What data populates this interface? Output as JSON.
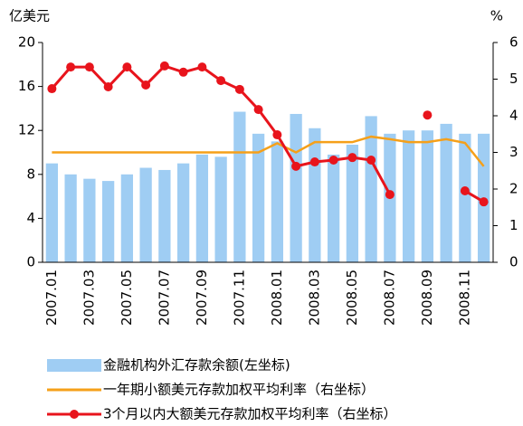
{
  "chart_data": {
    "type": "bar",
    "y_label": "亿美元",
    "y2_label": "%",
    "categories": [
      "2007.01",
      null,
      "2007.03",
      null,
      "2007.05",
      null,
      "2007.07",
      null,
      "2007.09",
      null,
      "2007.11",
      null,
      "2008.01",
      null,
      "2008.03",
      null,
      "2008.05",
      null,
      "2008.07",
      null,
      "2008.09",
      null,
      "2008.11",
      null
    ],
    "ylim": [
      0,
      20
    ],
    "yticks": [
      0,
      4,
      8,
      12,
      16,
      20
    ],
    "y2lim": [
      0,
      6
    ],
    "y2ticks": [
      0,
      1,
      2,
      3,
      4,
      5,
      6
    ],
    "series": [
      {
        "name": "金融机构外汇存款余额(左坐标)",
        "type": "bar",
        "color": "#9fcdf3",
        "values": [
          9.0,
          8.0,
          7.6,
          7.4,
          8.0,
          8.6,
          8.4,
          9.0,
          9.8,
          9.6,
          13.7,
          11.7,
          11.0,
          13.5,
          12.2,
          9.8,
          10.7,
          13.3,
          11.7,
          12.0,
          12.0,
          12.6,
          11.7,
          11.7
        ]
      },
      {
        "name": "一年期小额美元存款加权平均利率（右坐标）",
        "type": "line",
        "axis": "y2",
        "color": "#f5a01a",
        "values": [
          3.0,
          3.0,
          3.0,
          3.0,
          3.0,
          3.0,
          3.0,
          3.0,
          3.0,
          3.0,
          3.0,
          3.0,
          3.25,
          3.0,
          3.28,
          3.28,
          3.28,
          3.43,
          3.36,
          3.28,
          3.28,
          3.36,
          3.26,
          2.62
        ]
      },
      {
        "name": "3个月以内大额美元存款加权平均利率（右坐标）",
        "type": "line",
        "axis": "y2",
        "color": "#e8141c",
        "markers": true,
        "values": [
          4.74,
          5.33,
          5.33,
          4.79,
          5.33,
          4.84,
          5.36,
          5.19,
          5.33,
          4.96,
          4.72,
          4.17,
          3.48,
          2.62,
          2.74,
          2.79,
          2.86,
          2.79,
          1.85,
          null,
          4.02,
          null,
          1.95,
          1.65
        ]
      }
    ]
  }
}
